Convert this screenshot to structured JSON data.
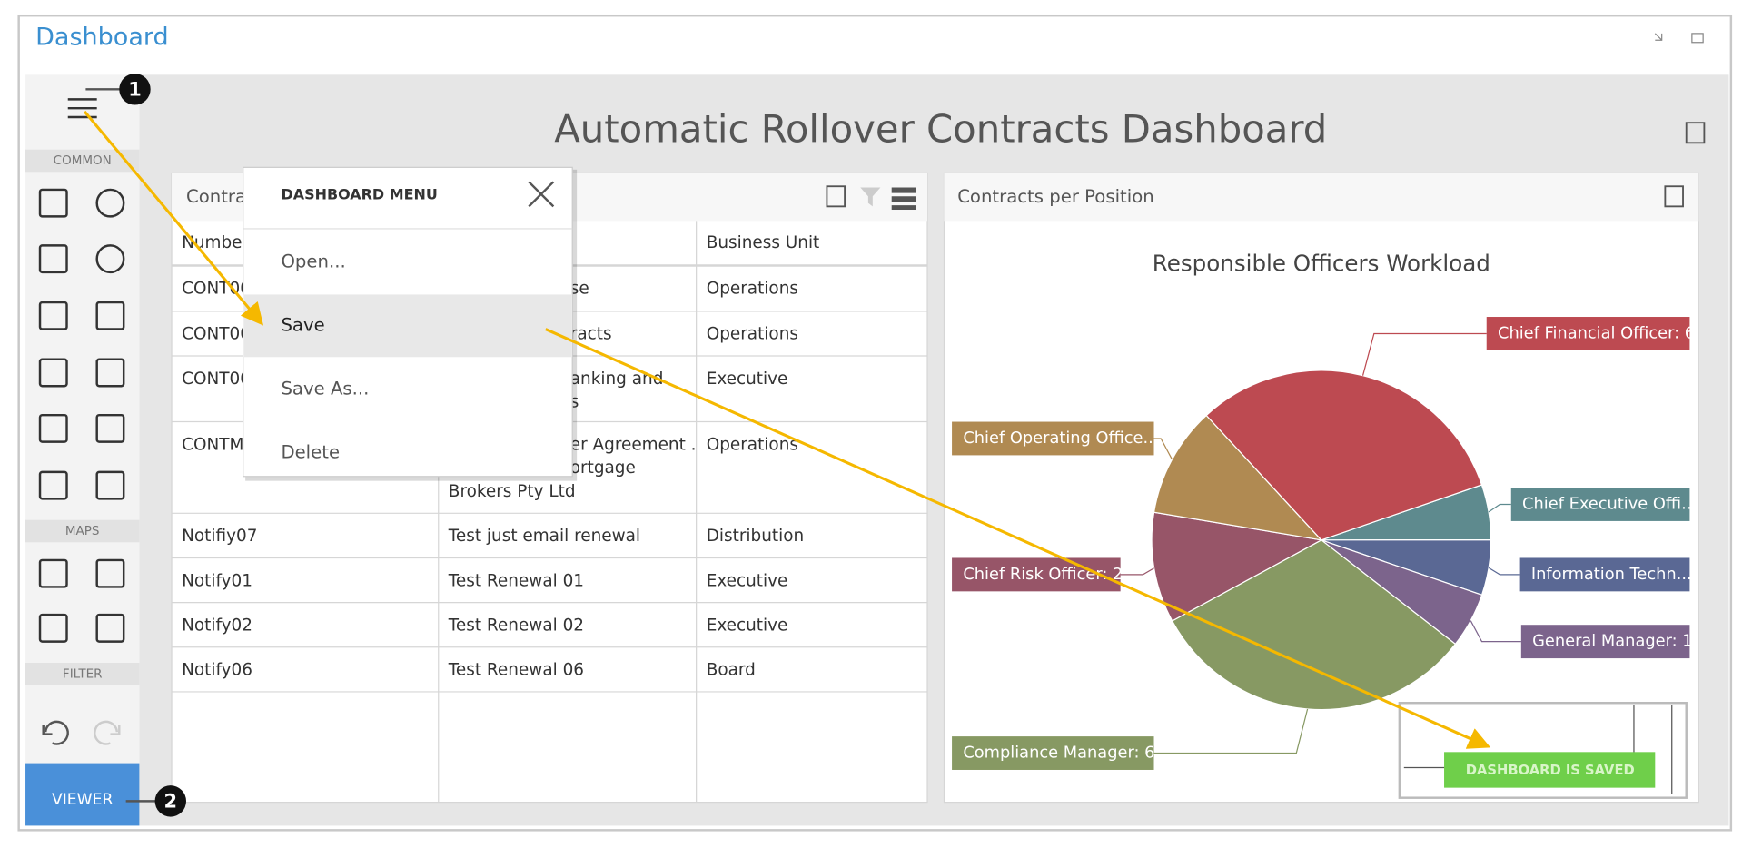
{
  "header": {
    "title": "Dashboard"
  },
  "sidebar": {
    "sections": [
      "COMMON",
      "MAPS",
      "FILTER"
    ],
    "viewer": "VIEWER"
  },
  "callouts": [
    "1",
    "2"
  ],
  "dashboard_title": "Automatic Rollover Contracts Dashboard",
  "grid_panel": {
    "title": "Contra",
    "columns": [
      "Numbe",
      "Business Unit"
    ],
    "rows": [
      [
        [
          "CONT00"
        ],
        [
          "se"
        ],
        [
          "Operations"
        ]
      ],
      [
        [
          "CONT00"
        ],
        [
          "racts"
        ],
        [
          "Operations"
        ]
      ],
      [
        [
          "CONT00"
        ],
        [
          "anking and",
          "s"
        ],
        [
          "Executive"
        ]
      ],
      [
        [
          "CONTM"
        ],
        [
          "er Agreement .",
          "ortgage",
          "Brokers Pty Ltd"
        ],
        [
          "Operations"
        ]
      ],
      [
        [
          "Notifiy07"
        ],
        [
          "Test just email renewal"
        ],
        [
          "Distribution"
        ]
      ],
      [
        [
          "Notify01"
        ],
        [
          "Test Renewal 01"
        ],
        [
          "Executive"
        ]
      ],
      [
        [
          "Notify02"
        ],
        [
          "Test Renewal 02"
        ],
        [
          "Executive"
        ]
      ],
      [
        [
          "Notify06"
        ],
        [
          "Test Renewal 06"
        ],
        [
          "Board"
        ]
      ]
    ]
  },
  "menu": {
    "title": "DASHBOARD MENU",
    "items": [
      "Open...",
      "Save",
      "Save As...",
      "Delete"
    ]
  },
  "pie_panel": {
    "title": "Contracts per Position",
    "chart_title": "Responsible Officers Workload",
    "slices": [
      {
        "label": "Chief Executive Offi...",
        "value": 1,
        "color": "#5e8a8e"
      },
      {
        "label": "Information Techn...",
        "value": 1,
        "color": "#5a6894"
      },
      {
        "label": "General Manager: 1",
        "value": 1,
        "color": "#7c648c"
      },
      {
        "label": "Compliance Manager: 6",
        "value": 6,
        "color": "#879963"
      },
      {
        "label": "Chief Risk Officer: 2",
        "value": 2,
        "color": "#975568"
      },
      {
        "label": "Chief Operating Office...",
        "value": 2,
        "color": "#b08a52"
      },
      {
        "label": "Chief Financial Officer: 6",
        "value": 6,
        "color": "#bd4a51"
      }
    ]
  },
  "toast": "DASHBOARD IS SAVED"
}
